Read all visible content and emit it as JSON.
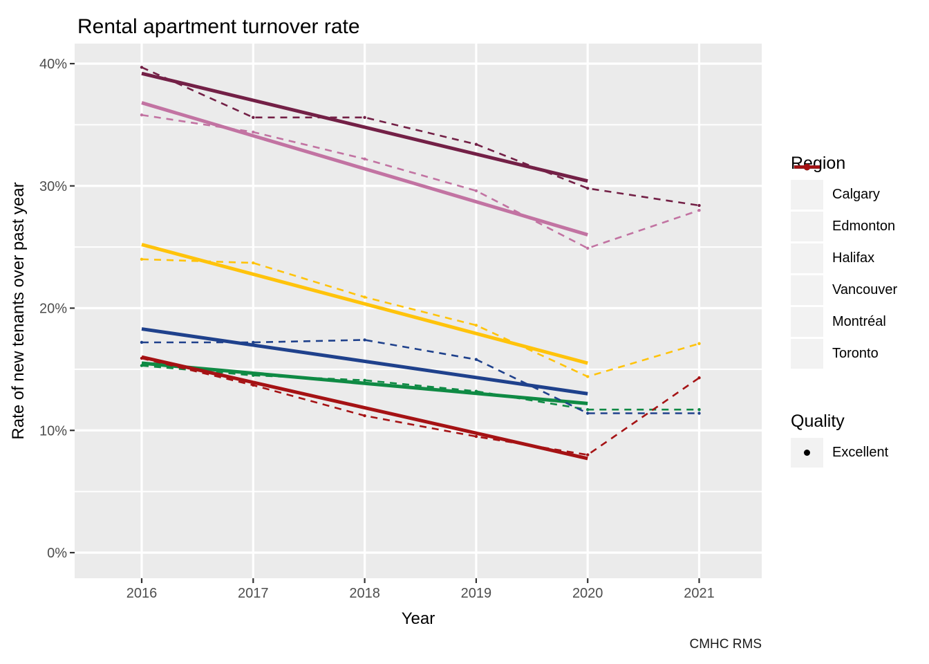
{
  "chart_data": {
    "type": "line",
    "title": "Rental apartment turnover rate",
    "xlabel": "Year",
    "ylabel": "Rate of new tenants over past year",
    "caption": "CMHC RMS",
    "x": [
      2016,
      2017,
      2018,
      2019,
      2020,
      2021
    ],
    "x_tick_labels": [
      "2016",
      "2017",
      "2018",
      "2019",
      "2020",
      "2021"
    ],
    "y_ticks": {
      "values": [
        0,
        10,
        20,
        30,
        40
      ],
      "labels": [
        "0%",
        "10%",
        "20%",
        "30%",
        "40%"
      ]
    },
    "y_minor_ticks": [
      5,
      15,
      25,
      35
    ],
    "xlim": [
      2015.4,
      2021.56
    ],
    "ylim": [
      -2.1,
      41.8
    ],
    "grid": {
      "panel_bg": "#EBEBEB",
      "major_gridline": "#FFFFFF",
      "minor_gridline": "#FFFFFF"
    },
    "legend_position": "right",
    "legend": {
      "region_title": "Region",
      "quality_title": "Quality",
      "quality_items": [
        {
          "label": "Excellent",
          "marker": "filled-point",
          "color": "#000000"
        }
      ]
    },
    "series": [
      {
        "name": "Calgary",
        "color": "#732046",
        "values": [
          39.7,
          35.6,
          35.6,
          33.4,
          29.8,
          28.4
        ],
        "trend": {
          "x": [
            2016,
            2020
          ],
          "y": [
            39.2,
            30.4
          ]
        }
      },
      {
        "name": "Edmonton",
        "color": "#C273A2",
        "values": [
          35.8,
          34.4,
          32.2,
          29.6,
          24.9,
          28.0
        ],
        "trend": {
          "x": [
            2016,
            2020
          ],
          "y": [
            36.8,
            26.0
          ]
        }
      },
      {
        "name": "Halifax",
        "color": "#FFC30B",
        "values": [
          24.0,
          23.7,
          20.9,
          18.6,
          14.4,
          17.1
        ],
        "trend": {
          "x": [
            2016,
            2020
          ],
          "y": [
            25.2,
            15.5
          ]
        }
      },
      {
        "name": "Vancouver",
        "color": "#0F8A44",
        "values": [
          15.3,
          14.5,
          14.1,
          13.2,
          11.7,
          11.7
        ],
        "trend": {
          "x": [
            2016,
            2020
          ],
          "y": [
            15.5,
            12.2
          ]
        }
      },
      {
        "name": "Montréal",
        "color": "#1F418C",
        "values": [
          17.2,
          17.2,
          17.4,
          15.8,
          11.4,
          11.4
        ],
        "trend": {
          "x": [
            2016,
            2020
          ],
          "y": [
            18.3,
            13.0
          ]
        }
      },
      {
        "name": "Toronto",
        "color": "#A51214",
        "values": [
          15.9,
          13.7,
          11.2,
          9.5,
          8.0,
          14.3
        ],
        "trend": {
          "x": [
            2016,
            2020
          ],
          "y": [
            16.0,
            7.7
          ]
        }
      }
    ]
  }
}
